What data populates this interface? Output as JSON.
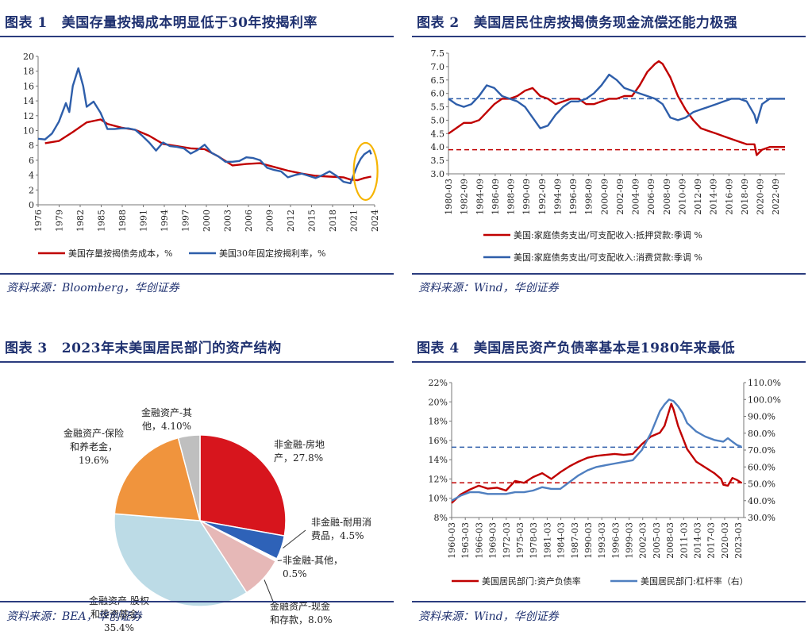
{
  "panels": [
    {
      "title_label": "图表 1",
      "title_text": "美国存量按揭成本明显低于30年按揭利率",
      "source": "资料来源：Bloomberg，华创证券",
      "chart_data": {
        "type": "line",
        "title": "美国存量按揭成本明显低于30年按揭利率",
        "xlim": [
          1976,
          2024.5
        ],
        "ylim": [
          0,
          20
        ],
        "xticks": [
          "1976",
          "1979",
          "1982",
          "1985",
          "1988",
          "1991",
          "1994",
          "1997",
          "2000",
          "2003",
          "2006",
          "2009",
          "2012",
          "2015",
          "2018",
          "2021",
          "2024"
        ],
        "yticks": [
          "0",
          "2",
          "4",
          "6",
          "8",
          "10",
          "12",
          "14",
          "16",
          "18",
          "20"
        ],
        "annotation": "highlight ellipse around 2022-2024",
        "series": [
          {
            "name": "美国存量按揭债务成本，%",
            "color": "#c00000",
            "x": [
              1977,
              1979,
              1981,
              1983,
              1985,
              1986,
              1988,
              1990,
              1992,
              1994,
              1996,
              1998,
              2000,
              2002,
              2004,
              2006,
              2008,
              2010,
              2012,
              2014,
              2016,
              2018,
              2020,
              2021,
              2022,
              2023,
              2024
            ],
            "y": [
              8.3,
              8.6,
              9.8,
              11.1,
              11.5,
              10.9,
              10.4,
              10.1,
              9.3,
              8.2,
              7.9,
              7.6,
              7.5,
              6.5,
              5.3,
              5.5,
              5.6,
              5.1,
              4.6,
              4.2,
              3.9,
              3.8,
              3.7,
              3.4,
              3.3,
              3.6,
              3.8
            ]
          },
          {
            "name": "美国30年固定按揭利率，%",
            "color": "#2e5eaa",
            "x": [
              1976,
              1977,
              1978,
              1979,
              1980,
              1980.5,
              1981,
              1981.8,
              1982.5,
              1983,
              1984,
              1985,
              1986,
              1987,
              1988,
              1989,
              1990,
              1991,
              1992,
              1993,
              1994,
              1995,
              1996,
              1997,
              1998,
              1999,
              2000,
              2001,
              2002,
              2003,
              2004,
              2005,
              2006,
              2007,
              2008,
              2009,
              2010,
              2011,
              2012,
              2013,
              2014,
              2015,
              2016,
              2017,
              2018,
              2019,
              2020,
              2021,
              2022,
              2022.5,
              2023,
              2023.8,
              2024
            ],
            "y": [
              8.9,
              8.8,
              9.6,
              11.2,
              13.7,
              12.5,
              16.0,
              18.4,
              16.0,
              13.2,
              13.9,
              12.4,
              10.2,
              10.2,
              10.3,
              10.3,
              10.1,
              9.3,
              8.4,
              7.3,
              8.4,
              7.9,
              7.8,
              7.6,
              6.9,
              7.4,
              8.1,
              7.0,
              6.5,
              5.8,
              5.8,
              5.9,
              6.4,
              6.3,
              6.0,
              5.0,
              4.7,
              4.5,
              3.7,
              4.0,
              4.2,
              3.9,
              3.6,
              4.0,
              4.5,
              3.9,
              3.1,
              2.9,
              5.3,
              6.2,
              6.8,
              7.3,
              6.8
            ]
          }
        ]
      }
    },
    {
      "title_label": "图表 2",
      "title_text": "美国居民住房按揭债务现金流偿还能力极强",
      "source": "资料来源：Wind，华创证券",
      "chart_data": {
        "type": "line",
        "title": "美国居民住房按揭债务现金流偿还能力极强",
        "xlim": [
          1980,
          2024
        ],
        "ylim": [
          3.0,
          7.5
        ],
        "xticks": [
          "1980-03",
          "1982-09",
          "1984-09",
          "1986-09",
          "1988-09",
          "1990-09",
          "1992-09",
          "1994-09",
          "1996-09",
          "1998-09",
          "2000-09",
          "2002-09",
          "2004-09",
          "2006-09",
          "2008-09",
          "2010-09",
          "2012-09",
          "2014-09",
          "2016-09",
          "2018-09",
          "2020-09",
          "2022-09"
        ],
        "yticks": [
          "3.0",
          "3.5",
          "4.0",
          "4.5",
          "5.0",
          "5.5",
          "6.0",
          "6.5",
          "7.0",
          "7.5"
        ],
        "reference_lines": [
          {
            "y": 3.9,
            "color": "#c00000"
          },
          {
            "y": 5.8,
            "color": "#2e5eaa"
          }
        ],
        "series": [
          {
            "name": "美国:家庭债务支出/可支配收入:抵押贷款:季调 %",
            "color": "#c00000",
            "x": [
              1980,
              1981,
              1982,
              1983,
              1984,
              1985,
              1986,
              1987,
              1988,
              1989,
              1990,
              1991,
              1992,
              1993,
              1994,
              1995,
              1996,
              1997,
              1998,
              1999,
              2000,
              2001,
              2002,
              2003,
              2004,
              2005,
              2006,
              2007,
              2007.5,
              2008,
              2009,
              2010,
              2011,
              2012,
              2013,
              2014,
              2015,
              2016,
              2017,
              2018,
              2019,
              2020,
              2020.3,
              2021,
              2022,
              2023,
              2024
            ],
            "y": [
              4.5,
              4.7,
              4.9,
              4.9,
              5.0,
              5.3,
              5.6,
              5.8,
              5.8,
              5.9,
              6.1,
              6.2,
              5.9,
              5.8,
              5.6,
              5.7,
              5.8,
              5.8,
              5.6,
              5.6,
              5.7,
              5.8,
              5.8,
              5.9,
              5.9,
              6.3,
              6.8,
              7.1,
              7.2,
              7.1,
              6.6,
              5.9,
              5.4,
              5.0,
              4.7,
              4.6,
              4.5,
              4.4,
              4.3,
              4.2,
              4.1,
              4.1,
              3.7,
              3.9,
              4.0,
              4.0,
              4.0
            ]
          },
          {
            "name": "美国:家庭债务支出/可支配收入:消费贷款:季调 %",
            "color": "#2e5eaa",
            "x": [
              1980,
              1981,
              1982,
              1983,
              1984,
              1985,
              1986,
              1987,
              1988,
              1989,
              1990,
              1991,
              1992,
              1993,
              1994,
              1995,
              1996,
              1997,
              1998,
              1999,
              2000,
              2001,
              2002,
              2003,
              2004,
              2005,
              2006,
              2007,
              2008,
              2009,
              2010,
              2011,
              2012,
              2013,
              2014,
              2015,
              2016,
              2017,
              2018,
              2019,
              2020,
              2020.3,
              2021,
              2022,
              2023,
              2024
            ],
            "y": [
              5.8,
              5.6,
              5.5,
              5.6,
              5.9,
              6.3,
              6.2,
              5.9,
              5.8,
              5.7,
              5.5,
              5.1,
              4.7,
              4.8,
              5.2,
              5.5,
              5.7,
              5.7,
              5.8,
              6.0,
              6.3,
              6.7,
              6.5,
              6.2,
              6.1,
              6.0,
              5.9,
              5.8,
              5.6,
              5.1,
              5.0,
              5.1,
              5.3,
              5.4,
              5.5,
              5.6,
              5.7,
              5.8,
              5.8,
              5.7,
              5.2,
              4.9,
              5.6,
              5.8,
              5.8,
              5.8
            ]
          }
        ]
      }
    },
    {
      "title_label": "图表 3",
      "title_text": "2023年末美国居民部门的资产结构",
      "source": "资料来源：BEA，华创证券",
      "chart_data": {
        "type": "pie",
        "title": "2023年末美国居民部门的资产结构",
        "slices": [
          {
            "name": "非金融-房地产",
            "label_lines": [
              "非金融-房地",
              "产，27.8%"
            ],
            "value": 27.8,
            "color": "#d7151d"
          },
          {
            "name": "非金融-耐用消费品",
            "label_lines": [
              "非金融-耐用消",
              "费品，4.5%"
            ],
            "value": 4.5,
            "color": "#2e62b8"
          },
          {
            "name": "非金融-其他",
            "label_lines": [
              "非金融-其他，",
              "0.5%"
            ],
            "value": 0.5,
            "color": "#ffffff"
          },
          {
            "name": "金融资产-现金和存款",
            "label_lines": [
              "金融资产-现金",
              "和存款，8.0%"
            ],
            "value": 8.0,
            "color": "#e6b8b7"
          },
          {
            "name": "金融资产-股权和投资基金",
            "label_lines": [
              "金融资产-股权",
              "和投资基金，",
              "35.4%"
            ],
            "value": 35.4,
            "color": "#bcdbe6"
          },
          {
            "name": "金融资产-保险和养老金",
            "label_lines": [
              "金融资产-保险",
              "和养老金，",
              "19.6%"
            ],
            "value": 19.6,
            "color": "#f0943d"
          },
          {
            "name": "金融资产-其他",
            "label_lines": [
              "金融资产-其",
              "他，4.10%"
            ],
            "value": 4.1,
            "color": "#bfbfbf"
          }
        ]
      }
    },
    {
      "title_label": "图表 4",
      "title_text": "美国居民资产负债率基本是1980年来最低",
      "source": "资料来源：Wind，华创证券",
      "chart_data": {
        "type": "line",
        "title": "美国居民资产负债率基本是1980年来最低",
        "xlim": [
          1960,
          2024.5
        ],
        "ylim": [
          8,
          22
        ],
        "y2lim": [
          30,
          110
        ],
        "xticks": [
          "1960-03",
          "1963-03",
          "1966-03",
          "1969-03",
          "1972-03",
          "1975-03",
          "1978-03",
          "1981-03",
          "1984-03",
          "1987-03",
          "1990-03",
          "1993-03",
          "1996-03",
          "1999-03",
          "2002-03",
          "2005-03",
          "2008-03",
          "2011-03",
          "2014-03",
          "2017-03",
          "2020-03",
          "2023-03"
        ],
        "yticks": [
          "8%",
          "10%",
          "12%",
          "14%",
          "16%",
          "18%",
          "20%",
          "22%"
        ],
        "y2ticks": [
          "30.0%",
          "40.0%",
          "50.0%",
          "60.0%",
          "70.0%",
          "80.0%",
          "90.0%",
          "100.0%",
          "110.0%"
        ],
        "reference_lines": [
          {
            "y": 11.6,
            "color": "#c00000"
          },
          {
            "y": 15.3,
            "color": "#2e5eaa"
          }
        ],
        "series": [
          {
            "name": "美国居民部门:资产负债率",
            "axis": "left",
            "color": "#c00000",
            "x": [
              1960,
              1962,
              1964,
              1966,
              1968,
              1970,
              1972,
              1974,
              1976,
              1978,
              1980,
              1982,
              1984,
              1986,
              1988,
              1990,
              1992,
              1994,
              1996,
              1998,
              2000,
              2002,
              2004,
              2006,
              2007,
              2008.5,
              2009,
              2010,
              2011,
              2012,
              2014,
              2016,
              2018,
              2019.5,
              2020,
              2021,
              2022,
              2023,
              2024
            ],
            "y": [
              9.5,
              10.4,
              10.9,
              11.3,
              11.0,
              11.1,
              10.8,
              11.8,
              11.6,
              12.2,
              12.6,
              12.0,
              12.7,
              13.3,
              13.8,
              14.2,
              14.4,
              14.5,
              14.6,
              14.5,
              14.6,
              15.6,
              16.4,
              16.8,
              17.5,
              19.8,
              19.2,
              17.5,
              16.3,
              15.1,
              13.8,
              13.2,
              12.6,
              12.0,
              11.4,
              11.3,
              12.1,
              11.9,
              11.6
            ]
          },
          {
            "name": "美国居民部门:杠杆率（右）",
            "axis": "right",
            "color": "#4f7fc0",
            "x": [
              1960,
              1962,
              1964,
              1966,
              1968,
              1970,
              1972,
              1974,
              1976,
              1978,
              1980,
              1982,
              1984,
              1986,
              1988,
              1990,
              1992,
              1994,
              1996,
              1998,
              2000,
              2002,
              2004,
              2006,
              2007,
              2008,
              2009,
              2010,
              2011,
              2012,
              2014,
              2016,
              2018,
              2020,
              2021,
              2022,
              2023,
              2024
            ],
            "y": [
              40,
              43,
              45,
              45,
              44,
              44,
              44,
              45,
              45,
              46,
              48,
              47,
              47,
              51,
              55,
              58,
              60,
              61,
              62,
              63,
              64,
              70,
              80,
              93,
              97,
              100,
              99,
              96,
              92,
              86,
              81,
              78,
              76,
              75,
              77,
              75,
              73,
              72
            ]
          }
        ]
      }
    }
  ]
}
